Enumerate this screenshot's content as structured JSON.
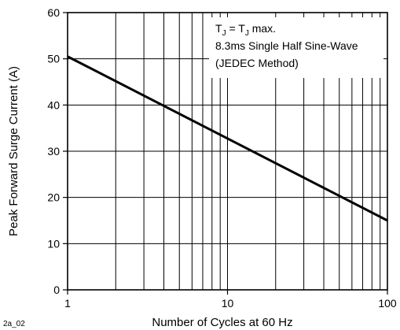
{
  "figure_id": "2a_02",
  "chart_data": {
    "type": "line",
    "x_scale": "log",
    "xlabel": "Number of Cycles at 60 Hz",
    "ylabel": "Peak Forward Surge Current (A)",
    "xlim": [
      1,
      100
    ],
    "ylim": [
      0,
      60
    ],
    "x_ticks": [
      1,
      10,
      100
    ],
    "x_tick_labels": [
      "1",
      "10",
      "100"
    ],
    "y_ticks": [
      0,
      10,
      20,
      30,
      40,
      50,
      60
    ],
    "y_tick_labels": [
      "0",
      "10",
      "20",
      "30",
      "40",
      "50",
      "60"
    ],
    "grid": true,
    "annotation": [
      "TJ = TJ max.",
      "8.3ms Single Half Sine-Wave",
      "(JEDEC Method)"
    ],
    "series": [
      {
        "x": [
          1,
          100
        ],
        "y": [
          50.5,
          15
        ]
      }
    ]
  }
}
